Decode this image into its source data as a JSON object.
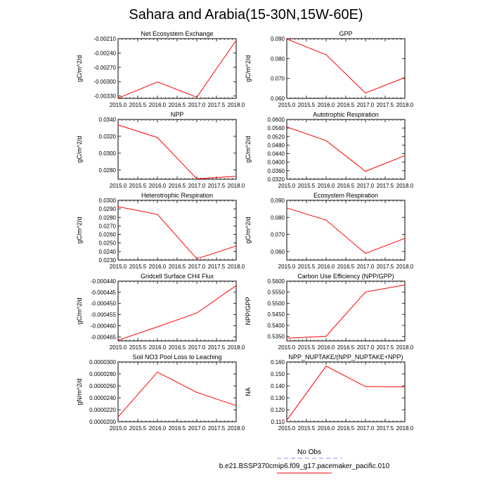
{
  "figure": {
    "title": "Sahara and Arabia(15-30N,15W-60E)",
    "line_color": "#ff0000",
    "obs_line_color": "#8888ff"
  },
  "legend": {
    "obs_label": "No Obs",
    "case_label": "b.e21.BSSP370cmip6.f09_g17.pacemaker_pacific.010"
  },
  "chart_data": [
    {
      "type": "line",
      "title": "Net Ecosystem Exchange",
      "ylabel": "gC/m^2/d",
      "x": [
        2015.0,
        2016.0,
        2017.0,
        2018.0
      ],
      "series": [
        {
          "values": [
            -0.003345,
            -0.003005,
            -0.003325,
            -0.002135
          ]
        }
      ],
      "xlim": [
        2015.0,
        2018.0
      ],
      "ylim": [
        -0.00335,
        -0.0021
      ],
      "xticks": [
        "2015.0",
        "2015.5",
        "2016.0",
        "2016.5",
        "2017.0",
        "2017.5",
        "2018.0"
      ],
      "yticks": [
        "-0.00330",
        "-0.00300",
        "-0.00270",
        "-0.00240",
        "-0.00210"
      ]
    },
    {
      "type": "line",
      "title": "GPP",
      "ylabel": "gC/m^2/d",
      "x": [
        2015.0,
        2016.0,
        2017.0,
        2018.0
      ],
      "series": [
        {
          "values": [
            0.0898,
            0.0819,
            0.0627,
            0.0705
          ]
        }
      ],
      "xlim": [
        2015.0,
        2018.0
      ],
      "ylim": [
        0.06,
        0.09
      ],
      "xticks": [
        "2015.0",
        "2015.5",
        "2016.0",
        "2016.5",
        "2017.0",
        "2017.5",
        "2018.0"
      ],
      "yticks": [
        "0.060",
        "0.070",
        "0.080",
        "0.090"
      ]
    },
    {
      "type": "line",
      "title": "NPP",
      "ylabel": "gC/m^2/d",
      "x": [
        2015.0,
        2016.0,
        2017.0,
        2018.0
      ],
      "series": [
        {
          "values": [
            0.03335,
            0.03185,
            0.02695,
            0.02725
          ]
        }
      ],
      "xlim": [
        2015.0,
        2018.0
      ],
      "ylim": [
        0.0269,
        0.034
      ],
      "xticks": [
        "2015.0",
        "2015.5",
        "2016.0",
        "2016.5",
        "2017.0",
        "2017.5",
        "2018.0"
      ],
      "yticks": [
        "0.0280",
        "0.0300",
        "0.0320",
        "0.0340"
      ]
    },
    {
      "type": "line",
      "title": "Autotrophic Respiration",
      "ylabel": "gC/m^2/d",
      "x": [
        2015.0,
        2016.0,
        2017.0,
        2018.0
      ],
      "series": [
        {
          "values": [
            0.0565,
            0.0501,
            0.0357,
            0.0431
          ]
        }
      ],
      "xlim": [
        2015.0,
        2018.0
      ],
      "ylim": [
        0.032,
        0.06
      ],
      "xticks": [
        "2015.0",
        "2015.5",
        "2016.0",
        "2016.5",
        "2017.0",
        "2017.5",
        "2018.0"
      ],
      "yticks": [
        "0.0320",
        "0.0360",
        "0.0400",
        "0.0440",
        "0.0480",
        "0.0520",
        "0.0560",
        "0.0600"
      ]
    },
    {
      "type": "line",
      "title": "Heterotrophic Respiration",
      "ylabel": "gC/m^2/d",
      "x": [
        2015.0,
        2016.0,
        2017.0,
        2018.0
      ],
      "series": [
        {
          "values": [
            0.02925,
            0.02835,
            0.02315,
            0.02465
          ]
        }
      ],
      "xlim": [
        2015.0,
        2018.0
      ],
      "ylim": [
        0.023,
        0.03
      ],
      "xticks": [
        "2015.0",
        "2015.5",
        "2016.0",
        "2016.5",
        "2017.0",
        "2017.5",
        "2018.0"
      ],
      "yticks": [
        "0.0230",
        "0.0240",
        "0.0250",
        "0.0260",
        "0.0270",
        "0.0280",
        "0.0290",
        "0.0300"
      ]
    },
    {
      "type": "line",
      "title": "Ecosystem Respiration",
      "ylabel": "gC/m^2/d",
      "x": [
        2015.0,
        2016.0,
        2017.0,
        2018.0
      ],
      "series": [
        {
          "values": [
            0.0855,
            0.0784,
            0.0589,
            0.0677
          ]
        }
      ],
      "xlim": [
        2015.0,
        2018.0
      ],
      "ylim": [
        0.055,
        0.09
      ],
      "xticks": [
        "2015.0",
        "2015.5",
        "2016.0",
        "2016.5",
        "2017.0",
        "2017.5",
        "2018.0"
      ],
      "yticks": [
        "0.060",
        "0.070",
        "0.080",
        "0.090"
      ]
    },
    {
      "type": "line",
      "title": "Gridcell Surface CH4 Flux",
      "ylabel": "gC/m^2/d",
      "x": [
        2015.0,
        2016.0,
        2017.0,
        2018.0
      ],
      "series": [
        {
          "values": [
            -0.0004665,
            -0.0004605,
            -0.0004543,
            -0.000442
          ]
        }
      ],
      "xlim": [
        2015.0,
        2018.0
      ],
      "ylim": [
        -0.0004668,
        -0.00044
      ],
      "xticks": [
        "2015.0",
        "2015.5",
        "2016.0",
        "2016.5",
        "2017.0",
        "2017.5",
        "2018.0"
      ],
      "yticks": [
        "-0.000465",
        "-0.000460",
        "-0.000455",
        "-0.000450",
        "-0.000445",
        "-0.000440"
      ]
    },
    {
      "type": "line",
      "title": "Carbon Use Efficiency (NPP/GPP)",
      "ylabel": "NPP/GPP",
      "x": [
        2015.0,
        2016.0,
        2017.0,
        2018.0
      ],
      "series": [
        {
          "values": [
            0.5342,
            0.5351,
            0.5551,
            0.5583
          ]
        }
      ],
      "xlim": [
        2015.0,
        2018.0
      ],
      "ylim": [
        0.533,
        0.56
      ],
      "xticks": [
        "2015.0",
        "2015.5",
        "2016.0",
        "2016.5",
        "2017.0",
        "2017.5",
        "2018.0"
      ],
      "yticks": [
        "0.5350",
        "0.5400",
        "0.5450",
        "0.5500",
        "0.5550",
        "0.5600"
      ]
    },
    {
      "type": "line",
      "title": "Soil NO3 Pool Loss to Leaching",
      "ylabel": "gN/m^2/d",
      "x": [
        2015.0,
        2016.0,
        2017.0,
        2018.0
      ],
      "series": [
        {
          "values": [
            2.08e-05,
            2.83e-05,
            2.49e-05,
            2.27e-05
          ]
        }
      ],
      "xlim": [
        2015.0,
        2018.0
      ],
      "ylim": [
        2e-05,
        3e-05
      ],
      "xticks": [
        "2015.0",
        "2015.5",
        "2016.0",
        "2016.5",
        "2017.0",
        "2017.5",
        "2018.0"
      ],
      "yticks": [
        "0.0000200",
        "0.0000220",
        "0.0000240",
        "0.0000260",
        "0.0000280",
        "0.0000300"
      ]
    },
    {
      "type": "line",
      "title": "NPP_NUPTAKE/(NPP_NUPTAKE+NPP)",
      "ylabel": "NA",
      "x": [
        2015.0,
        2016.0,
        2017.0,
        2018.0
      ],
      "series": [
        {
          "values": [
            0.1112,
            0.1565,
            0.1394,
            0.1392
          ]
        }
      ],
      "xlim": [
        2015.0,
        2018.0
      ],
      "ylim": [
        0.11,
        0.16
      ],
      "xticks": [
        "2015.0",
        "2015.5",
        "2016.0",
        "2016.5",
        "2017.0",
        "2017.5",
        "2018.0"
      ],
      "yticks": [
        "0.110",
        "0.120",
        "0.130",
        "0.140",
        "0.150",
        "0.160"
      ]
    }
  ]
}
